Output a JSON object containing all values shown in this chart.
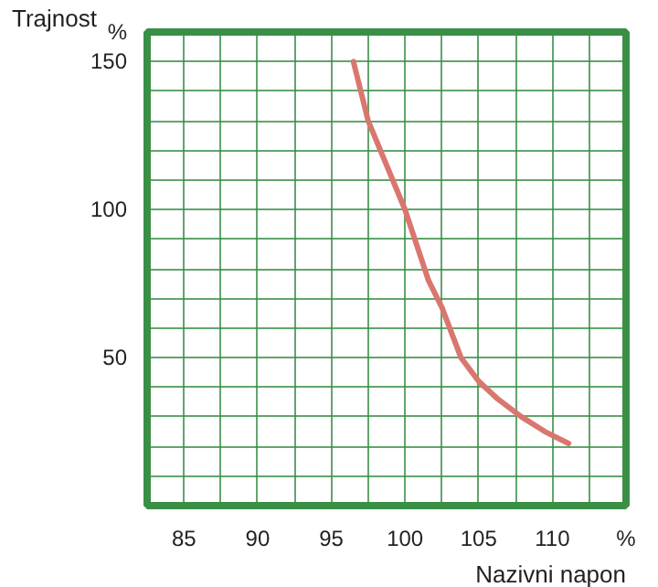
{
  "chart_data": {
    "type": "line",
    "xlabel": "Nazivni napon",
    "ylabel": "Trajnost",
    "x": [
      96.5,
      97.5,
      100,
      101.6,
      102.5,
      103.8,
      105,
      106.3,
      107.9,
      109.5,
      111.1
    ],
    "series": [
      {
        "color": "#d9776f",
        "values": [
          150,
          130,
          100,
          76,
          67,
          50,
          42,
          36,
          30,
          25,
          21
        ]
      }
    ],
    "xlim": [
      82.5,
      115
    ],
    "xticks": [
      {
        "value": 82.5,
        "label": null
      },
      85,
      {
        "value": 87.5,
        "label": null
      },
      90,
      {
        "value": 92.5,
        "label": null
      },
      95,
      {
        "value": 97.5,
        "label": null
      },
      100,
      {
        "value": 102.5,
        "label": null
      },
      105,
      {
        "value": 107.5,
        "label": null
      },
      110,
      {
        "value": 112.5,
        "label": null
      },
      {
        "value": 115,
        "label": "%"
      }
    ],
    "ylim": [
      0,
      160
    ],
    "yticks": [
      {
        "value": 0,
        "label": null
      },
      {
        "value": 10,
        "label": null
      },
      {
        "value": 20,
        "label": null
      },
      {
        "value": 30,
        "label": null
      },
      {
        "value": 40,
        "label": null
      },
      50,
      {
        "value": 60,
        "label": null
      },
      {
        "value": 70,
        "label": null
      },
      {
        "value": 80,
        "label": null
      },
      {
        "value": 90,
        "label": null
      },
      100,
      {
        "value": 110,
        "label": null
      },
      {
        "value": 120,
        "label": null
      },
      {
        "value": 130,
        "label": null
      },
      {
        "value": 140,
        "label": null
      },
      150,
      {
        "value": 160,
        "label": "%"
      }
    ],
    "grid": true,
    "marker": "none",
    "line_style": "solid"
  }
}
